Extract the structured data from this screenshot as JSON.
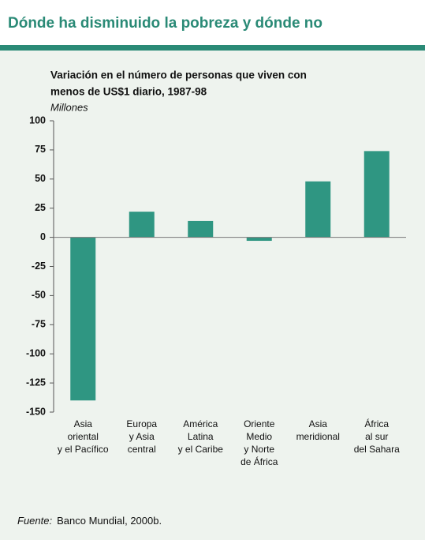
{
  "chart_data": {
    "type": "bar",
    "title": "Dónde ha disminuido la pobreza y dónde no",
    "subtitle": [
      "Variación en el número de personas que viven con",
      "menos de US$1 diario, 1987-98"
    ],
    "unit": "Millones",
    "categories": [
      "Asia\noriental\ny el Pacífico",
      "Europa\ny Asia\ncentral",
      "América\nLatina\ny el Caribe",
      "Oriente\nMedio\ny Norte\nde África",
      "Asia\nmeridional",
      "África\nal sur\ndel Sahara"
    ],
    "values": [
      -140,
      22,
      14,
      -3,
      48,
      74
    ],
    "color": "#2f9682",
    "ylim": [
      -150,
      100
    ],
    "yticks": [
      100,
      75,
      50,
      25,
      0,
      -25,
      -50,
      -75,
      -100,
      -125,
      -150
    ],
    "grid": false,
    "source_label": "Fuente:",
    "source": "Banco Mundial, 2000b."
  }
}
